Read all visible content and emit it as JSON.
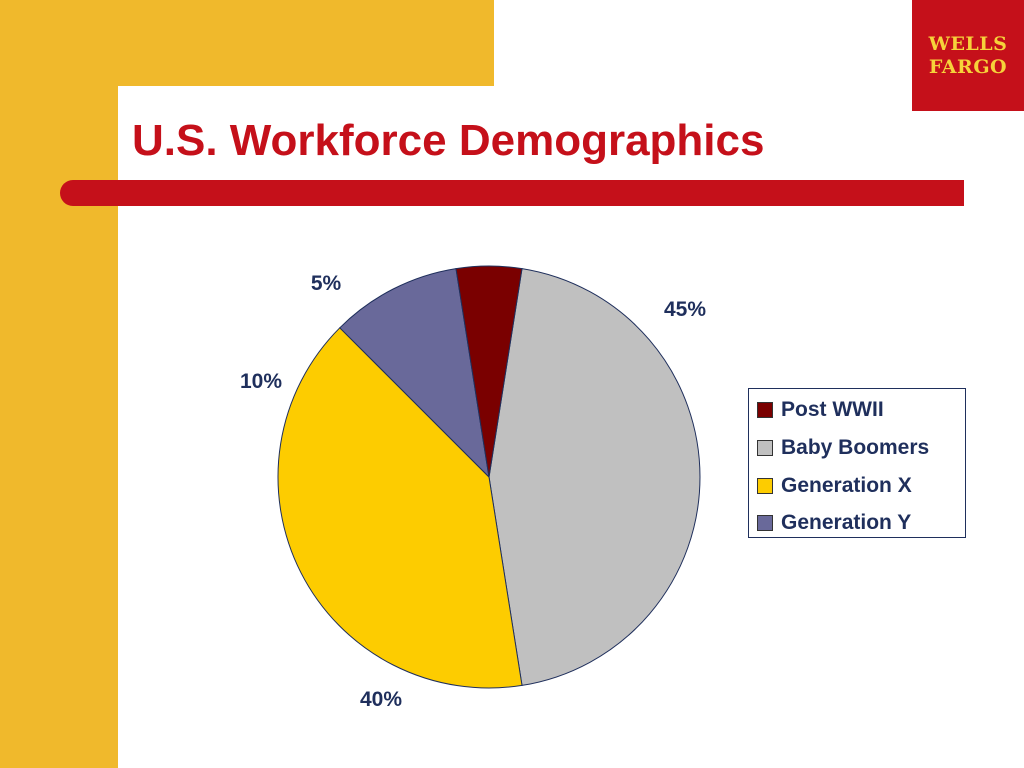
{
  "slide": {
    "title": "U.S. Workforce Demographics",
    "logo": {
      "line1": "WELLS",
      "line2": "FARGO"
    }
  },
  "colors": {
    "accent_red": "#c5101a",
    "band_gold": "#f0b92c",
    "label_navy": "#1f2f5c",
    "logo_text": "#f6d23a"
  },
  "chart_data": {
    "type": "pie",
    "title": "",
    "start_series": "Baby Boomers",
    "direction": "clockwise",
    "legend_position": "right",
    "series": [
      {
        "name": "Post WWII",
        "value": 5,
        "label": "5%",
        "color": "#7a0000"
      },
      {
        "name": "Baby Boomers",
        "value": 45,
        "label": "45%",
        "color": "#c0c0c0"
      },
      {
        "name": "Generation X",
        "value": 40,
        "label": "40%",
        "color": "#fdcc00"
      },
      {
        "name": "Generation Y",
        "value": 10,
        "label": "10%",
        "color": "#69699a"
      }
    ]
  }
}
